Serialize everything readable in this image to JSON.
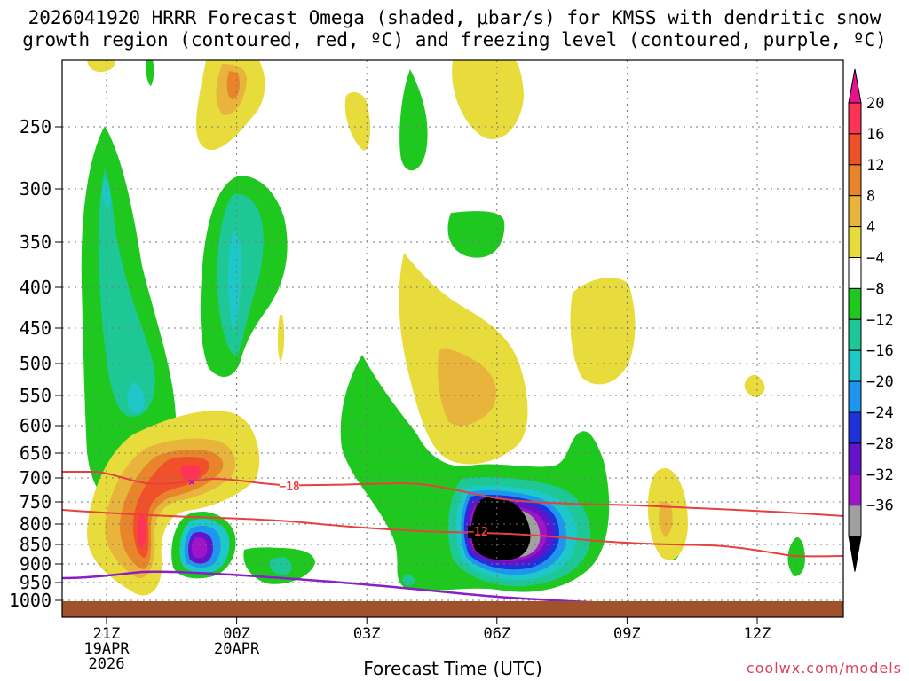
{
  "chart_data": {
    "type": "heatmap",
    "title_line1": "2026041920 HRRR Forecast Omega (shaded, μbar/s) for KMSS with dendritic snow",
    "title_line2": "growth region (contoured, red, ºC) and freezing level (contoured, purple, ºC)",
    "xlabel": "Forecast Time (UTC)",
    "credit": "coolwx.com/models",
    "y_ticks": [
      "250",
      "300",
      "350",
      "400",
      "450",
      "500",
      "550",
      "600",
      "650",
      "700",
      "750",
      "800",
      "850",
      "900",
      "950",
      "1000"
    ],
    "x_ticks": [
      {
        "label": "21Z",
        "sub1": "19APR",
        "sub2": "2026"
      },
      {
        "label": "00Z",
        "sub1": "20APR",
        "sub2": ""
      },
      {
        "label": "03Z",
        "sub1": "",
        "sub2": ""
      },
      {
        "label": "06Z",
        "sub1": "",
        "sub2": ""
      },
      {
        "label": "09Z",
        "sub1": "",
        "sub2": ""
      },
      {
        "label": "12Z",
        "sub1": "",
        "sub2": ""
      }
    ],
    "colorbar": [
      {
        "label": "20",
        "color": "#ff3355"
      },
      {
        "label": "16",
        "color": "#f0502a"
      },
      {
        "label": "12",
        "color": "#e8852a"
      },
      {
        "label": "8",
        "color": "#e8b43c"
      },
      {
        "label": "4",
        "color": "#e8dc3c"
      },
      {
        "label": "−4",
        "color": "#ffffff"
      },
      {
        "label": "−8",
        "color": "#1ec81e"
      },
      {
        "label": "−12",
        "color": "#1ec896"
      },
      {
        "label": "−16",
        "color": "#1ec8c8"
      },
      {
        "label": "−20",
        "color": "#1e96f0"
      },
      {
        "label": "−24",
        "color": "#1e32dc"
      },
      {
        "label": "−28",
        "color": "#6414c8"
      },
      {
        "label": "−32",
        "color": "#a014c8"
      },
      {
        "label": "−36",
        "color": "#a0a0a0"
      }
    ],
    "colorbar_top_color": "#e6148c",
    "colorbar_bottom_color": "#000000",
    "contours": [
      {
        "label": "−18",
        "color": "#e84040"
      },
      {
        "label": "−12",
        "color": "#e84040"
      }
    ],
    "freezing_color": "#8a1ec8",
    "ground_color": "#a0522d"
  }
}
